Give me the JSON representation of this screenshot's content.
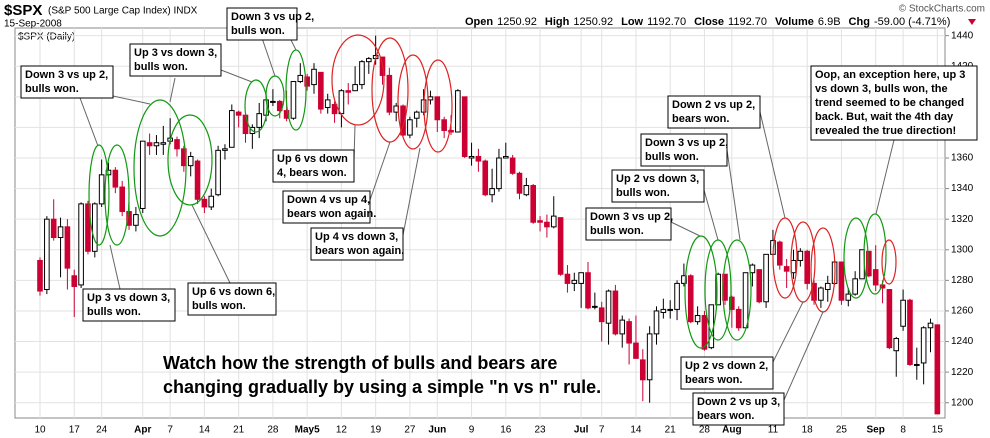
{
  "header": {
    "symbol": "$SPX",
    "name": "(S&P 500 Large Cap Index) INDX",
    "date": "15-Sep-2008",
    "source": "© StockCharts.com",
    "quote": [
      {
        "label": "Open",
        "value": "1250.92"
      },
      {
        "label": "High",
        "value": "1250.92"
      },
      {
        "label": "Low",
        "value": "1192.70"
      },
      {
        "label": "Close",
        "value": "1192.70"
      },
      {
        "label": "Volume",
        "value": "6.9B"
      },
      {
        "label": "Chg",
        "value": "-59.00 (-4.71%)"
      }
    ]
  },
  "chart_data": {
    "type": "candlestick",
    "panel_label": "$SPX (Daily)",
    "categories": [
      "10",
      null,
      null,
      null,
      null,
      "17",
      null,
      null,
      null,
      "24",
      null,
      null,
      null,
      null,
      null,
      "Apr",
      null,
      null,
      null,
      "7",
      null,
      null,
      null,
      null,
      "14",
      null,
      null,
      null,
      null,
      "21",
      null,
      null,
      null,
      null,
      "28",
      null,
      null,
      null,
      null,
      "May5",
      null,
      null,
      null,
      null,
      "12",
      null,
      null,
      null,
      null,
      "19",
      null,
      null,
      null,
      null,
      "27",
      null,
      null,
      null,
      "Jun",
      null,
      null,
      null,
      null,
      "9",
      null,
      null,
      null,
      null,
      "16",
      null,
      null,
      null,
      null,
      "23",
      null,
      null,
      null,
      null,
      null,
      "Jul",
      null,
      null,
      "7",
      null,
      null,
      null,
      null,
      "14",
      null,
      null,
      null,
      null,
      "21",
      null,
      null,
      null,
      null,
      "28",
      null,
      null,
      null,
      "Aug",
      null,
      null,
      null,
      null,
      null,
      "11",
      null,
      null,
      null,
      null,
      "18",
      null,
      null,
      null,
      null,
      "25",
      null,
      null,
      null,
      null,
      "Sep",
      null,
      null,
      null,
      "8",
      null,
      null,
      null,
      null,
      "15"
    ],
    "ohlc": [
      [
        1293,
        1295,
        1270,
        1273
      ],
      [
        1274,
        1322,
        1271,
        1320
      ],
      [
        1320,
        1333,
        1306,
        1308
      ],
      [
        1308,
        1321,
        1282,
        1315
      ],
      [
        1315,
        1320,
        1274,
        1288
      ],
      [
        1283,
        1287,
        1256,
        1276
      ],
      [
        1277,
        1331,
        1275,
        1330
      ],
      [
        1330,
        1332,
        1297,
        1299
      ],
      [
        1299,
        1331,
        1295,
        1330
      ],
      [
        1330,
        1359,
        1328,
        1349
      ],
      [
        1349,
        1357,
        1344,
        1352
      ],
      [
        1352,
        1354,
        1337,
        1341
      ],
      [
        1341,
        1345,
        1322,
        1325
      ],
      [
        1325,
        1332,
        1313,
        1316
      ],
      [
        1316,
        1328,
        1312,
        1323
      ],
      [
        1327,
        1371,
        1324,
        1371
      ],
      [
        1370,
        1376,
        1362,
        1368
      ],
      [
        1368,
        1375,
        1362,
        1370
      ],
      [
        1369,
        1381,
        1362,
        1370
      ],
      [
        1371,
        1386,
        1369,
        1373
      ],
      [
        1372,
        1374,
        1361,
        1366
      ],
      [
        1366,
        1368,
        1351,
        1355
      ],
      [
        1355,
        1364,
        1348,
        1361
      ],
      [
        1358,
        1359,
        1330,
        1333
      ],
      [
        1333,
        1335,
        1324,
        1328
      ],
      [
        1328,
        1340,
        1326,
        1335
      ],
      [
        1336,
        1368,
        1335,
        1365
      ],
      [
        1365,
        1369,
        1359,
        1366
      ],
      [
        1367,
        1395,
        1367,
        1391
      ],
      [
        1390,
        1391,
        1380,
        1388
      ],
      [
        1388,
        1389,
        1370,
        1376
      ],
      [
        1376,
        1382,
        1366,
        1380
      ],
      [
        1380,
        1396,
        1373,
        1389
      ],
      [
        1388,
        1399,
        1384,
        1398
      ],
      [
        1397,
        1405,
        1394,
        1397
      ],
      [
        1397,
        1398,
        1386,
        1391
      ],
      [
        1391,
        1404,
        1384,
        1386
      ],
      [
        1386,
        1410,
        1385,
        1410
      ],
      [
        1410,
        1422,
        1409,
        1414
      ],
      [
        1413,
        1415,
        1404,
        1407
      ],
      [
        1408,
        1422,
        1402,
        1418
      ],
      [
        1416,
        1416,
        1389,
        1392
      ],
      [
        1393,
        1402,
        1389,
        1398
      ],
      [
        1395,
        1397,
        1383,
        1389
      ],
      [
        1389,
        1405,
        1380,
        1404
      ],
      [
        1404,
        1409,
        1395,
        1403
      ],
      [
        1404,
        1420,
        1404,
        1408
      ],
      [
        1408,
        1424,
        1405,
        1423
      ],
      [
        1423,
        1426,
        1415,
        1425
      ],
      [
        1425,
        1440,
        1421,
        1427
      ],
      [
        1426,
        1426,
        1408,
        1414
      ],
      [
        1414,
        1419,
        1388,
        1390
      ],
      [
        1390,
        1396,
        1384,
        1394
      ],
      [
        1394,
        1395,
        1374,
        1375
      ],
      [
        1375,
        1387,
        1373,
        1385
      ],
      [
        1386,
        1391,
        1380,
        1390
      ],
      [
        1390,
        1405,
        1388,
        1398
      ],
      [
        1398,
        1404,
        1395,
        1400
      ],
      [
        1400,
        1400,
        1377,
        1385
      ],
      [
        1385,
        1387,
        1373,
        1378
      ],
      [
        1378,
        1388,
        1375,
        1377
      ],
      [
        1377,
        1405,
        1377,
        1404
      ],
      [
        1400,
        1400,
        1360,
        1361
      ],
      [
        1360,
        1370,
        1355,
        1361
      ],
      [
        1361,
        1366,
        1351,
        1358
      ],
      [
        1358,
        1359,
        1335,
        1336
      ],
      [
        1336,
        1353,
        1331,
        1340
      ],
      [
        1340,
        1366,
        1338,
        1360
      ],
      [
        1360,
        1370,
        1360,
        1361
      ],
      [
        1360,
        1362,
        1349,
        1350
      ],
      [
        1350,
        1351,
        1333,
        1337
      ],
      [
        1336,
        1347,
        1335,
        1342
      ],
      [
        1342,
        1343,
        1317,
        1318
      ],
      [
        1319,
        1322,
        1312,
        1318
      ],
      [
        1318,
        1323,
        1308,
        1315
      ],
      [
        1315,
        1335,
        1314,
        1322
      ],
      [
        1321,
        1321,
        1283,
        1284
      ],
      [
        1284,
        1290,
        1272,
        1278
      ],
      [
        1278,
        1285,
        1273,
        1280
      ],
      [
        1278,
        1285,
        1262,
        1285
      ],
      [
        1285,
        1292,
        1261,
        1262
      ],
      [
        1263,
        1272,
        1261,
        1263
      ],
      [
        1262,
        1266,
        1240,
        1253
      ],
      [
        1252,
        1274,
        1238,
        1273
      ],
      [
        1273,
        1277,
        1244,
        1245
      ],
      [
        1245,
        1257,
        1236,
        1254
      ],
      [
        1253,
        1255,
        1225,
        1239
      ],
      [
        1239,
        1257,
        1229,
        1229
      ],
      [
        1228,
        1235,
        1201,
        1215
      ],
      [
        1215,
        1250,
        1200,
        1245
      ],
      [
        1245,
        1263,
        1238,
        1260
      ],
      [
        1259,
        1268,
        1255,
        1261
      ],
      [
        1261,
        1267,
        1255,
        1261
      ],
      [
        1261,
        1280,
        1254,
        1278
      ],
      [
        1278,
        1291,
        1276,
        1283
      ],
      [
        1283,
        1284,
        1252,
        1253
      ],
      [
        1253,
        1263,
        1251,
        1257
      ],
      [
        1257,
        1260,
        1234,
        1235
      ],
      [
        1236,
        1264,
        1235,
        1264
      ],
      [
        1264,
        1285,
        1264,
        1284
      ],
      [
        1284,
        1284,
        1264,
        1267
      ],
      [
        1269,
        1270,
        1249,
        1261
      ],
      [
        1261,
        1263,
        1247,
        1249
      ],
      [
        1249,
        1285,
        1249,
        1285
      ],
      [
        1285,
        1291,
        1276,
        1290
      ],
      [
        1287,
        1287,
        1265,
        1266
      ],
      [
        1266,
        1297,
        1262,
        1297
      ],
      [
        1297,
        1313,
        1296,
        1306
      ],
      [
        1305,
        1306,
        1287,
        1290
      ],
      [
        1289,
        1294,
        1275,
        1286
      ],
      [
        1285,
        1300,
        1281,
        1293
      ],
      [
        1293,
        1301,
        1289,
        1299
      ],
      [
        1299,
        1300,
        1274,
        1278
      ],
      [
        1278,
        1280,
        1264,
        1267
      ],
      [
        1267,
        1276,
        1262,
        1275
      ],
      [
        1274,
        1283,
        1266,
        1278
      ],
      [
        1278,
        1293,
        1277,
        1292
      ],
      [
        1292,
        1292,
        1264,
        1267
      ],
      [
        1267,
        1275,
        1263,
        1271
      ],
      [
        1271,
        1286,
        1270,
        1281
      ],
      [
        1281,
        1300,
        1281,
        1300
      ],
      [
        1299,
        1299,
        1282,
        1283
      ],
      [
        1287,
        1303,
        1273,
        1277
      ],
      [
        1277,
        1280,
        1265,
        1275
      ],
      [
        1274,
        1274,
        1235,
        1236
      ],
      [
        1234,
        1243,
        1217,
        1242
      ],
      [
        1250,
        1274,
        1247,
        1267
      ],
      [
        1267,
        1268,
        1224,
        1225
      ],
      [
        1225,
        1236,
        1215,
        1225
      ],
      [
        1226,
        1250,
        1212,
        1249
      ],
      [
        1249,
        1255,
        1233,
        1252
      ],
      [
        1250.92,
        1250.92,
        1192.7,
        1192.7
      ]
    ],
    "up_color": "#000000",
    "down_color": "#cc0033",
    "ylim": [
      1190,
      1445
    ],
    "yticks": [
      1200,
      1220,
      1240,
      1260,
      1280,
      1300,
      1320,
      1340,
      1360,
      1380,
      1400,
      1420,
      1440
    ],
    "grid": true,
    "annotations": [
      {
        "lines": [
          "Down 3 vs up 2,",
          "bulls won."
        ],
        "color": "#007700"
      },
      {
        "lines": [
          "Up 3 vs down 3,",
          "bulls won."
        ],
        "color": "#007700"
      },
      {
        "lines": [
          "Down 3 vs up 2,",
          "bulls won."
        ],
        "color": "#007700"
      },
      {
        "lines": [
          "Up 6 vs down",
          "4, bears won."
        ],
        "color": "#cc0000"
      },
      {
        "lines": [
          "Down 4 vs up 4,",
          "bears won again."
        ],
        "color": "#cc0000"
      },
      {
        "lines": [
          "Up 4 vs down 3,",
          "bears won again."
        ],
        "color": "#cc0000"
      },
      {
        "lines": [
          "Up 3 vs down 3,",
          "bulls won."
        ],
        "color": "#007700"
      },
      {
        "lines": [
          "Up 6 vs down 6,",
          "bulls won."
        ],
        "color": "#007700"
      },
      {
        "lines": [
          "Down 2 vs up 2,",
          "bears won."
        ],
        "color": "#cc0000"
      },
      {
        "lines": [
          "Down 3 vs up 2,",
          "bulls won."
        ],
        "color": "#007700"
      },
      {
        "lines": [
          "Up 2 vs down 3,",
          "bulls won."
        ],
        "color": "#007700"
      },
      {
        "lines": [
          "Down 3 vs up 2,",
          "bulls won."
        ],
        "color": "#007700"
      },
      {
        "lines": [
          "Up 2 vs down 2,",
          "bears won."
        ],
        "color": "#cc0000"
      },
      {
        "lines": [
          "Down 2 vs up 3,",
          "bears won."
        ],
        "color": "#cc0000"
      },
      {
        "lines": [
          "Oop, an exception here, up 3",
          "vs down 3, bulls won, the",
          "trend seemed to be changed",
          "back. But, wait the 4th day",
          "revealed the true direction!"
        ],
        "color": "#0000cc"
      }
    ],
    "caption": {
      "lines": [
        "Watch how the strength of bulls and bears are",
        "changing gradually by using a simple \"n vs n\" rule."
      ],
      "color": "#0000cc"
    }
  }
}
